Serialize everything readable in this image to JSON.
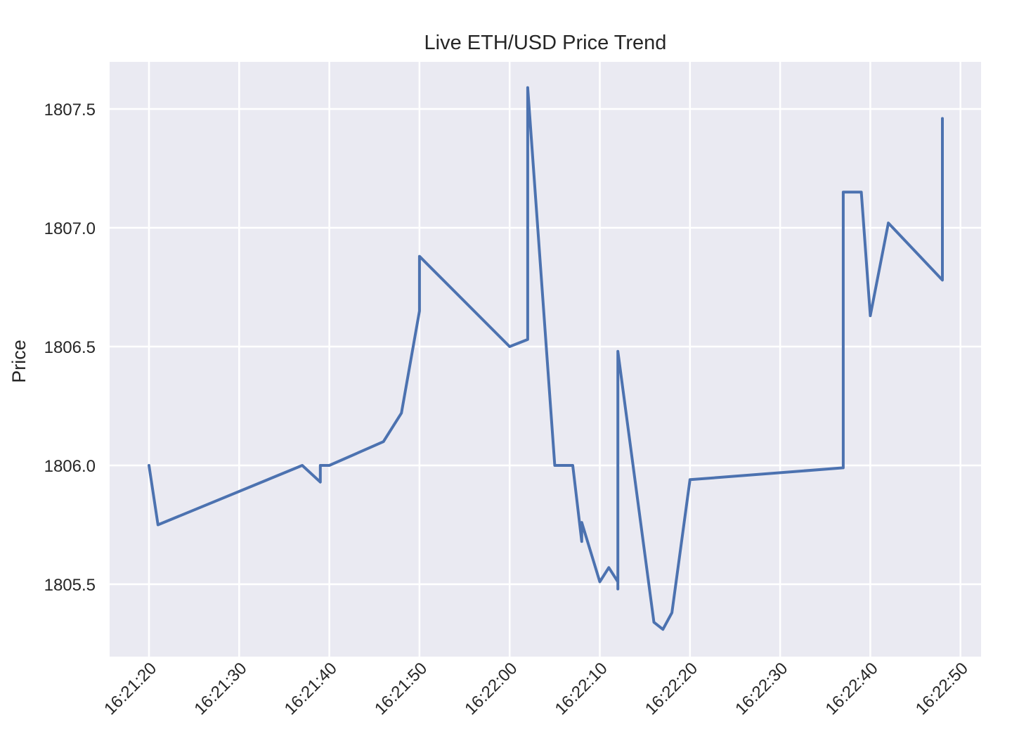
{
  "chart_data": {
    "type": "line",
    "title": "Live ETH/USD Price Trend",
    "xlabel": "",
    "ylabel": "Price",
    "grid": true,
    "legend": null,
    "colors": {
      "line": "#4C72B0",
      "background": "#EAEAF2",
      "grid": "#FFFFFF"
    },
    "x_ticks": [
      "16:21:20",
      "16:21:30",
      "16:21:40",
      "16:21:50",
      "16:22:00",
      "16:22:10",
      "16:22:20",
      "16:22:30",
      "16:22:40",
      "16:22:50"
    ],
    "y_ticks": [
      "1805.5",
      "1806.0",
      "1806.5",
      "1807.0",
      "1807.5"
    ],
    "xlim": [
      "16:21:15.6",
      "16:22:51.4"
    ],
    "ylim": [
      1805.2,
      1807.7
    ],
    "series": [
      {
        "name": "Price",
        "x": [
          "16:21:20",
          "16:21:21",
          "16:21:37",
          "16:21:39",
          "16:21:39",
          "16:21:40",
          "16:21:46",
          "16:21:48",
          "16:21:50",
          "16:21:50",
          "16:22:00",
          "16:22:02",
          "16:22:02",
          "16:22:05",
          "16:22:07",
          "16:22:08",
          "16:22:08",
          "16:22:10",
          "16:22:11",
          "16:22:12",
          "16:22:12",
          "16:22:12",
          "16:22:16",
          "16:22:17",
          "16:22:18",
          "16:22:20",
          "16:22:37",
          "16:22:37",
          "16:22:39",
          "16:22:40",
          "16:22:42",
          "16:22:48",
          "16:22:48"
        ],
        "values": [
          1806.0,
          1805.75,
          1806.0,
          1805.93,
          1806.0,
          1806.0,
          1806.1,
          1806.22,
          1806.65,
          1806.88,
          1806.5,
          1806.53,
          1807.59,
          1806.0,
          1806.0,
          1805.68,
          1805.76,
          1805.51,
          1805.57,
          1805.51,
          1805.48,
          1806.48,
          1805.34,
          1805.31,
          1805.38,
          1805.94,
          1805.99,
          1807.15,
          1807.15,
          1806.63,
          1807.02,
          1806.78,
          1807.46
        ]
      }
    ]
  }
}
